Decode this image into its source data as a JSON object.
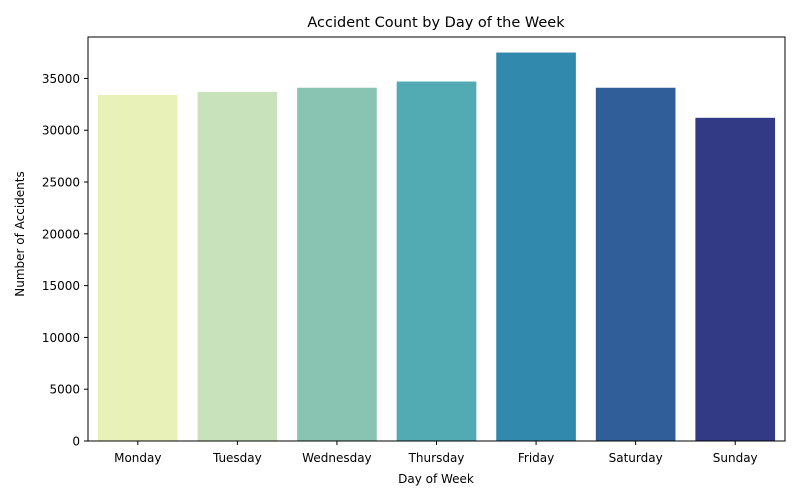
{
  "chart_data": {
    "type": "bar",
    "title": "Accident Count by Day of the Week",
    "xlabel": "Day of Week",
    "ylabel": "Number of Accidents",
    "categories": [
      "Monday",
      "Tuesday",
      "Wednesday",
      "Thursday",
      "Friday",
      "Saturday",
      "Sunday"
    ],
    "values": [
      33400,
      33700,
      34100,
      34700,
      37500,
      34100,
      31200
    ],
    "colors": [
      "#e8f1b7",
      "#c8e3bb",
      "#89c4b3",
      "#52aab3",
      "#3289ae",
      "#305e98",
      "#323a86"
    ],
    "ylim": [
      0,
      39000
    ],
    "yticks": [
      0,
      5000,
      10000,
      15000,
      20000,
      25000,
      30000,
      35000
    ],
    "grid": false,
    "legend": "none"
  }
}
